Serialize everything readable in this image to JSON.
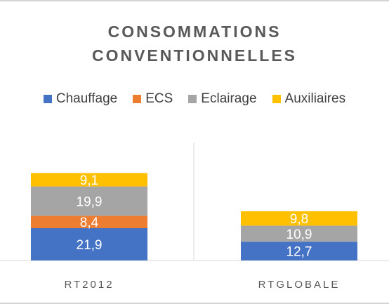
{
  "chart_data": {
    "type": "bar",
    "stacked": true,
    "title_lines": [
      "CONSOMMATIONS",
      "CONVENTIONNELLES"
    ],
    "categories": [
      "RT2012",
      "RTGLOBALE"
    ],
    "series": [
      {
        "name": "Chauffage",
        "color": "#4472c4",
        "values": [
          21.9,
          12.7
        ],
        "labels": [
          "21,9",
          "12,7"
        ]
      },
      {
        "name": "ECS",
        "color": "#ed7d31",
        "values": [
          8.4,
          0
        ],
        "labels": [
          "8,4",
          ""
        ]
      },
      {
        "name": "Eclairage",
        "color": "#a5a5a5",
        "values": [
          19.9,
          10.9
        ],
        "labels": [
          "19,9",
          "10,9"
        ]
      },
      {
        "name": "Auxiliaires",
        "color": "#ffc000",
        "values": [
          9.1,
          9.8
        ],
        "labels": [
          "9,1",
          "9,8"
        ]
      }
    ],
    "legend_position": "top",
    "grid": false
  }
}
